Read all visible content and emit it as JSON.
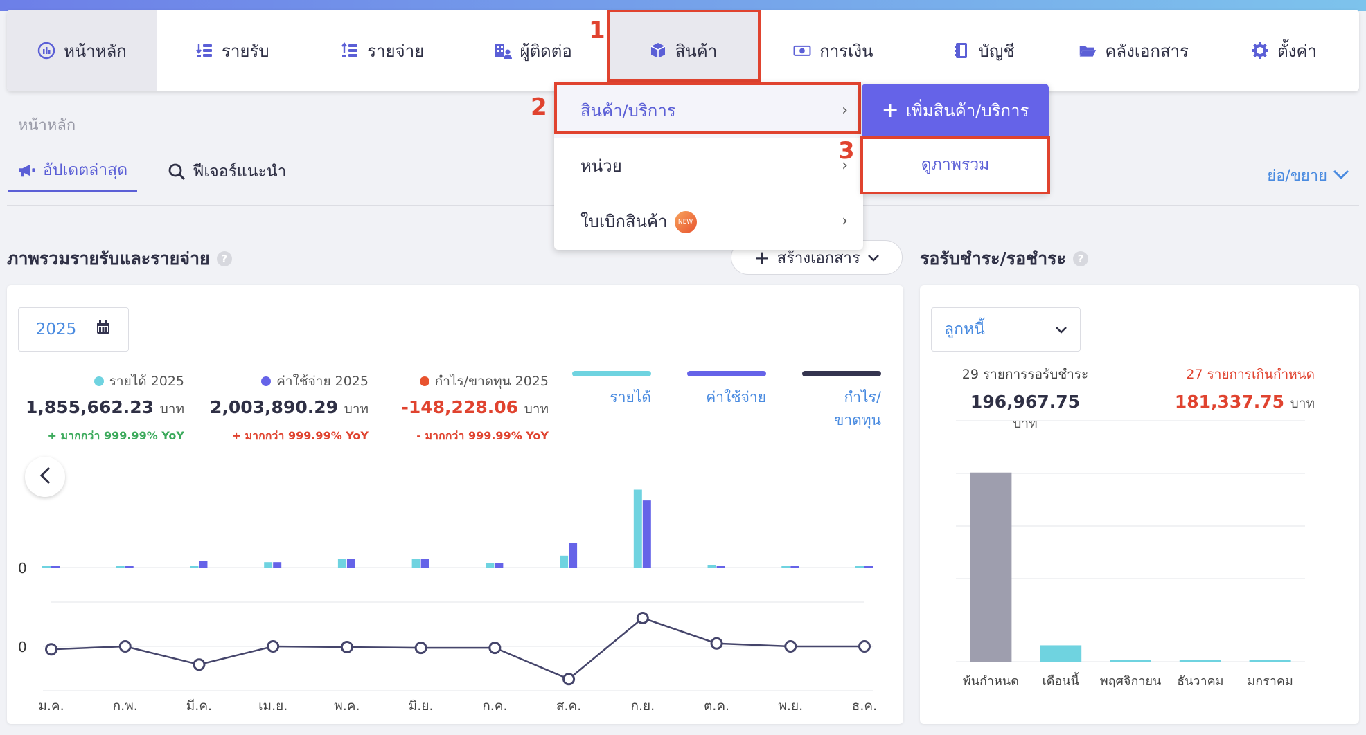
{
  "nav": {
    "items": [
      {
        "label": "หน้าหลัก",
        "icon": "chart-circle-icon"
      },
      {
        "label": "รายรับ",
        "icon": "income-list-icon"
      },
      {
        "label": "รายจ่าย",
        "icon": "expense-list-icon"
      },
      {
        "label": "ผู้ติดต่อ",
        "icon": "contacts-icon"
      },
      {
        "label": "สินค้า",
        "icon": "box-icon"
      },
      {
        "label": "การเงิน",
        "icon": "money-icon"
      },
      {
        "label": "บัญชี",
        "icon": "ledger-icon"
      },
      {
        "label": "คลังเอกสาร",
        "icon": "folder-icon"
      },
      {
        "label": "ตั้งค่า",
        "icon": "gear-icon"
      }
    ]
  },
  "annotations": {
    "one": "1",
    "two": "2",
    "three": "3"
  },
  "breadcrumb": "หน้าหลัก",
  "tabs": {
    "updates": "อัปเดตล่าสุด",
    "features": "ฟีเจอร์แนะนำ"
  },
  "collapse_label": "ย่อ/ขยาย",
  "dropdown": {
    "items": [
      {
        "label": "สินค้า/บริการ"
      },
      {
        "label": "หน่วย"
      },
      {
        "label": "ใบเบิกสินค้า",
        "badge": "NEW"
      }
    ],
    "chevron": "›"
  },
  "submenu": {
    "add_label": "เพิ่มสินค้า/บริการ",
    "add_plus": "+",
    "view_label": "ดูภาพรวม"
  },
  "overview": {
    "title": "ภาพรวมรายรับและรายจ่าย",
    "help": "?",
    "create_label": "สร้างเอกสาร",
    "create_plus": "+",
    "year": "2025",
    "stats": [
      {
        "label": "รายได้ 2025",
        "value": "1,855,662.23",
        "unit": "บาท",
        "yoy": "+ มากกว่า 999.99% YoY",
        "dot_color": "#6fd3e0",
        "value_color": "#2f3045",
        "yoy_color": "#3caa5c"
      },
      {
        "label": "ค่าใช้จ่าย 2025",
        "value": "2,003,890.29",
        "unit": "บาท",
        "yoy": "+ มากกว่า 999.99% YoY",
        "dot_color": "#6563e8",
        "value_color": "#2f3045",
        "yoy_color": "#e0432f"
      },
      {
        "label": "กำไร/ขาดทุน 2025",
        "value": "-148,228.06",
        "unit": "บาท",
        "yoy": "- มากกว่า 999.99% YoY",
        "dot_color": "#e8532f",
        "value_color": "#e0432f",
        "yoy_color": "#e0432f"
      }
    ],
    "legend": [
      {
        "label": "รายได้",
        "color": "#6fd3e0"
      },
      {
        "label": "ค่าใช้จ่าย",
        "color": "#6563e8"
      },
      {
        "label": "กำไร/ขาดทุน",
        "color": "#34344f"
      }
    ]
  },
  "pending": {
    "title": "รอรับชำระ/รอชำระ",
    "help": "?",
    "select_value": "ลูกหนี้",
    "left_label": "29 รายการรอรับชำระ",
    "left_value": "196,967.75",
    "right_label": "27 รายการเกินกำหนด",
    "right_value": "181,337.75",
    "unit": "บาท"
  },
  "chart_data": [
    {
      "type": "bar",
      "categories": [
        "ม.ค.",
        "ก.พ.",
        "มี.ค.",
        "เม.ย.",
        "พ.ค.",
        "มิ.ย.",
        "ก.ค.",
        "ส.ค.",
        "ก.ย.",
        "ต.ค.",
        "พ.ย.",
        "ธ.ค."
      ],
      "series": [
        {
          "name": "รายได้",
          "values": [
            1,
            1,
            1,
            5,
            8,
            8,
            4,
            11,
            72,
            2,
            1,
            1
          ]
        },
        {
          "name": "ค่าใช้จ่าย",
          "values": [
            1,
            1,
            6,
            5,
            8,
            8,
            4,
            23,
            62,
            1,
            1,
            1
          ]
        }
      ],
      "y_tick_label": "0",
      "colors": [
        "#6fd3e0",
        "#6563e8"
      ]
    },
    {
      "type": "line",
      "categories": [
        "ม.ค.",
        "ก.พ.",
        "มี.ค.",
        "เม.ย.",
        "พ.ค.",
        "มิ.ย.",
        "ก.ค.",
        "ส.ค.",
        "ก.ย.",
        "ต.ค.",
        "พ.ย.",
        "ธ.ค."
      ],
      "series": [
        {
          "name": "กำไร/ขาดทุน",
          "values": [
            -4,
            0,
            -25,
            0,
            -1,
            -2,
            -2,
            -45,
            39,
            4,
            0,
            0
          ]
        }
      ],
      "y_tick_label": "0",
      "color": "#45456b"
    },
    {
      "type": "bar",
      "categories": [
        "พ้นกำหนด",
        "เดือนนี้",
        "พฤศจิกายน",
        "ธันวาคม",
        "มกราคม"
      ],
      "values": [
        181337.75,
        15630,
        300,
        300,
        300
      ],
      "colors": [
        "#9e9eae",
        "#6fd3e0",
        "#6fd3e0",
        "#6fd3e0",
        "#6fd3e0"
      ]
    }
  ]
}
